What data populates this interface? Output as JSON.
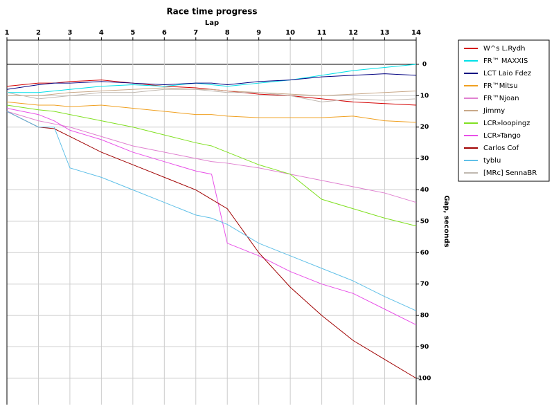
{
  "chart_data": {
    "type": "line",
    "title": "Race time progress",
    "x_label": "Lap",
    "y_label": "Gap, seconds",
    "x": [
      1,
      2,
      2.5,
      3,
      4,
      5,
      6,
      7,
      7.5,
      8,
      9,
      10,
      11,
      12,
      13,
      14
    ],
    "xlim": [
      1,
      14
    ],
    "xticks": [
      1,
      2,
      3,
      4,
      5,
      6,
      7,
      8,
      9,
      10,
      11,
      12,
      13,
      14
    ],
    "ylim": [
      -7.7,
      108.4
    ],
    "yticks": [
      0,
      10,
      20,
      30,
      40,
      50,
      60,
      70,
      80,
      90,
      100
    ],
    "y_inverted": true,
    "grid": true,
    "legend": "right",
    "series": [
      {
        "name": "W^s L.Rydh",
        "color": "#d40000",
        "values": [
          7,
          6,
          6,
          5.5,
          5,
          6,
          7,
          7.5,
          8,
          8.5,
          9.5,
          10,
          11,
          12,
          12.5,
          13
        ]
      },
      {
        "name": "FR™ MAXXIS",
        "color": "#00e0e8",
        "values": [
          9,
          9,
          8.5,
          8,
          7,
          6.5,
          7,
          6,
          6.5,
          7,
          6,
          5,
          3.5,
          2,
          1,
          0
        ]
      },
      {
        "name": "LCT Laio Fdez",
        "color": "#000080",
        "values": [
          8,
          6.5,
          6,
          6,
          5.5,
          6,
          6.5,
          6,
          6,
          6.5,
          5.5,
          5,
          4,
          3.5,
          3,
          3.5
        ]
      },
      {
        "name": "FR™Mitsu",
        "color": "#f0a020",
        "values": [
          12,
          13,
          13,
          13.5,
          13,
          14,
          15,
          16,
          16,
          16.5,
          17,
          17,
          17,
          16.5,
          18,
          18.5
        ]
      },
      {
        "name": "FR™Njoan",
        "color": "#e080d0",
        "values": [
          15,
          18,
          19,
          20,
          23,
          26,
          28,
          30,
          31,
          31.5,
          33,
          35,
          37,
          39,
          41,
          44
        ]
      },
      {
        "name": "Jimmy",
        "color": "#c8a888",
        "values": [
          10,
          10,
          9.5,
          9,
          8.5,
          8,
          7.5,
          8,
          8,
          8.5,
          9,
          9.5,
          10,
          9.5,
          9,
          8.5
        ]
      },
      {
        "name": "LCR»loopingz",
        "color": "#80e020",
        "values": [
          13,
          14.5,
          15,
          16,
          18,
          20,
          22.5,
          25,
          26,
          28,
          32,
          35,
          43,
          46,
          49,
          51.5
        ]
      },
      {
        "name": "LCR»Tango",
        "color": "#e850e8",
        "values": [
          14,
          16,
          18,
          21,
          24,
          28,
          31,
          34,
          35,
          57,
          61,
          66,
          70,
          73,
          78,
          83
        ]
      },
      {
        "name": "Carlos Cof",
        "color": "#a00000",
        "values": [
          15,
          20,
          20.5,
          23,
          28,
          32,
          36,
          40,
          43,
          46,
          60,
          71,
          80,
          88,
          94,
          100
        ]
      },
      {
        "name": "tyblu",
        "color": "#60c0e8",
        "values": [
          15,
          20,
          20,
          33,
          36,
          40,
          44,
          48,
          49,
          51,
          57,
          61,
          65,
          69,
          74,
          78.5
        ]
      },
      {
        "name": "[MRc] SennaBR",
        "color": "#c0b8b0",
        "values": [
          9,
          11,
          10.5,
          10,
          9,
          9,
          8,
          8,
          8.5,
          9,
          9,
          10,
          12,
          11,
          11.5,
          11
        ]
      }
    ]
  }
}
